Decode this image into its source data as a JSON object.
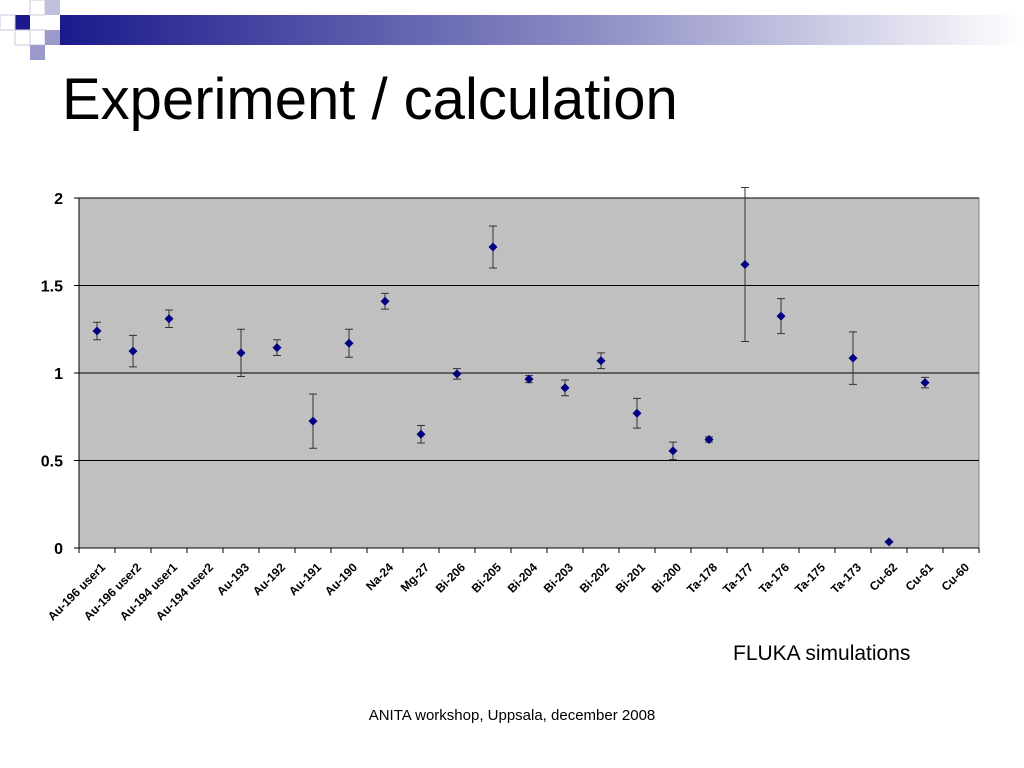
{
  "slide": {
    "title": "Experiment / calculation",
    "note": "FLUKA simulations",
    "footer": "ANITA workshop, Uppsala, december 2008"
  },
  "colors": {
    "plot_background": "#c0c0c0",
    "marker": "#000080",
    "banner_dark": "#1a1a8c",
    "banner_light": "#9a9acb"
  },
  "chart_data": {
    "type": "scatter",
    "title": "",
    "xlabel": "",
    "ylabel": "",
    "ylim": [
      0,
      2
    ],
    "yticks": [
      0,
      0.5,
      1,
      1.5,
      2
    ],
    "gridlines": "horizontal",
    "legend": "none",
    "categories": [
      "Au-196 user1",
      "Au-196 user2",
      "Au-194 user1",
      "Au-194 user2",
      "Au-193",
      "Au-192",
      "Au-191",
      "Au-190",
      "Na-24",
      "Mg-27",
      "Bi-206",
      "Bi-205",
      "Bi-204",
      "Bi-203",
      "Bi-202",
      "Bi-201",
      "Bi-200",
      "Ta-178",
      "Ta-177",
      "Ta-176",
      "Ta-175",
      "Ta-173",
      "Cu-62",
      "Cu-61",
      "Cu-60"
    ],
    "points": [
      {
        "category": "Au-196 user1",
        "y": 1.24,
        "err": 0.05
      },
      {
        "category": "Au-196 user2",
        "y": 1.125,
        "err": 0.09
      },
      {
        "category": "Au-194 user1",
        "y": 1.31,
        "err": 0.05
      },
      {
        "category": "Au-193",
        "y": 1.115,
        "err": 0.135
      },
      {
        "category": "Au-192",
        "y": 1.145,
        "err": 0.045
      },
      {
        "category": "Au-191",
        "y": 0.725,
        "err": 0.155
      },
      {
        "category": "Au-190",
        "y": 1.17,
        "err": 0.08
      },
      {
        "category": "Na-24",
        "y": 1.41,
        "err": 0.045
      },
      {
        "category": "Mg-27",
        "y": 0.65,
        "err": 0.05
      },
      {
        "category": "Bi-206",
        "y": 0.995,
        "err": 0.03
      },
      {
        "category": "Bi-205",
        "y": 1.72,
        "err": 0.12
      },
      {
        "category": "Bi-204",
        "y": 0.965,
        "err": 0.02
      },
      {
        "category": "Bi-203",
        "y": 0.915,
        "err": 0.045
      },
      {
        "category": "Bi-202",
        "y": 1.07,
        "err": 0.045
      },
      {
        "category": "Bi-201",
        "y": 0.77,
        "err": 0.085
      },
      {
        "category": "Bi-200",
        "y": 0.555,
        "err": 0.05
      },
      {
        "category": "Ta-178",
        "y": 0.62,
        "err": 0.015
      },
      {
        "category": "Ta-177",
        "y": 1.62,
        "err": 0.44
      },
      {
        "category": "Ta-176",
        "y": 1.325,
        "err": 0.1
      },
      {
        "category": "Ta-173",
        "y": 1.085,
        "err": 0.15
      },
      {
        "category": "Cu-62",
        "y": 0.035,
        "err": 0
      },
      {
        "category": "Cu-61",
        "y": 0.945,
        "err": 0.03
      }
    ]
  }
}
